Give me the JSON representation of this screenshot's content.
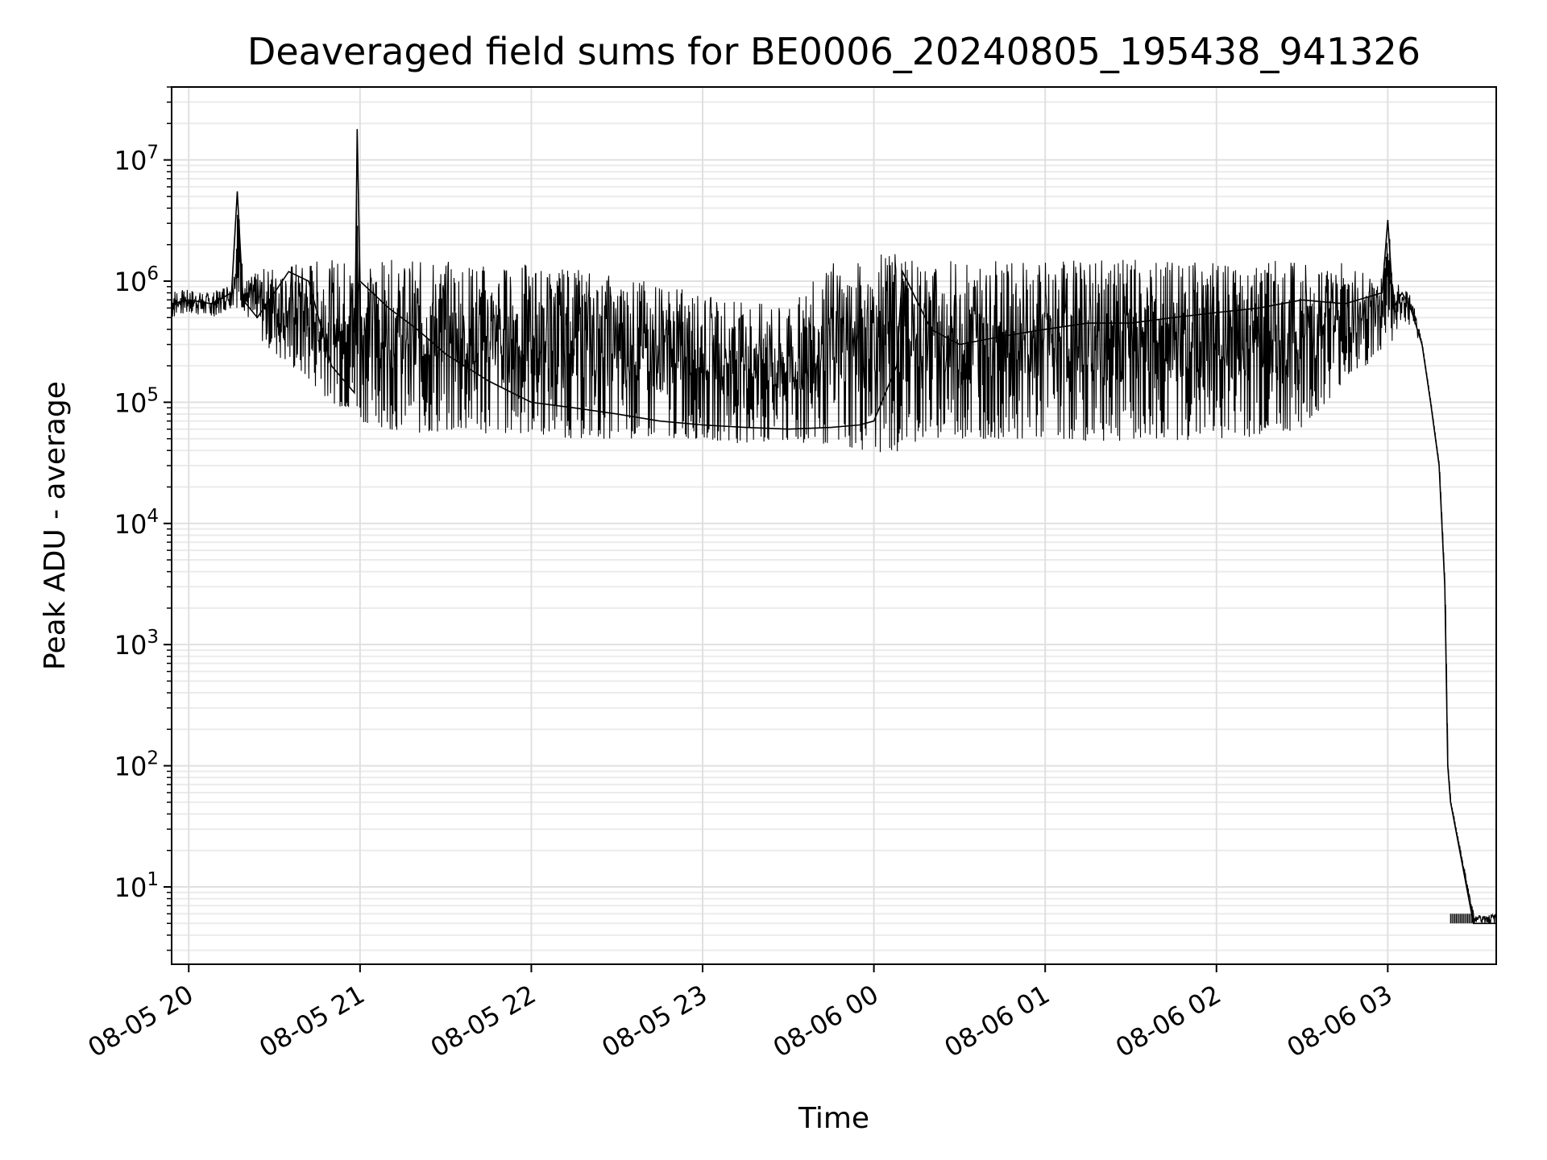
{
  "chart_data": {
    "type": "line",
    "title": "Deaveraged field sums for BE0006_20240805_195438_941326",
    "xlabel": "Time",
    "ylabel": "Peak ADU - average",
    "yscale": "log",
    "ylim": [
      2.3,
      40000000
    ],
    "xlim": [
      "2024-08-05 19:54",
      "2024-08-06 03:38"
    ],
    "grid": true,
    "line_color": "#000000",
    "x_ticks": [
      "08-05 20",
      "08-05 21",
      "08-05 22",
      "08-05 23",
      "08-06 00",
      "08-06 01",
      "08-06 02",
      "08-06 03"
    ],
    "x_tick_times": [
      "2024-08-05 20:00",
      "2024-08-05 21:00",
      "2024-08-05 22:00",
      "2024-08-05 23:00",
      "2024-08-06 00:00",
      "2024-08-06 01:00",
      "2024-08-06 02:00",
      "2024-08-06 03:00"
    ],
    "y_ticks": [
      {
        "value": 10,
        "base": "10",
        "exp": "1"
      },
      {
        "value": 100,
        "base": "10",
        "exp": "2"
      },
      {
        "value": 1000,
        "base": "10",
        "exp": "3"
      },
      {
        "value": 10000,
        "base": "10",
        "exp": "4"
      },
      {
        "value": 100000,
        "base": "10",
        "exp": "5"
      },
      {
        "value": 1000000,
        "base": "10",
        "exp": "6"
      },
      {
        "value": 10000000,
        "base": "10",
        "exp": "7"
      }
    ],
    "series": [
      {
        "x": [
          "2024-08-05 19:54",
          "2024-08-05 20:00",
          "2024-08-05 20:08",
          "2024-08-05 20:15",
          "2024-08-05 20:17",
          "2024-08-05 20:19",
          "2024-08-05 20:24",
          "2024-08-05 20:30",
          "2024-08-05 20:35",
          "2024-08-05 20:42",
          "2024-08-05 20:50",
          "2024-08-05 20:58",
          "2024-08-05 20:59",
          "2024-08-05 21:00",
          "2024-08-05 21:10",
          "2024-08-05 21:20",
          "2024-08-05 21:30",
          "2024-08-05 21:45",
          "2024-08-05 22:00",
          "2024-08-05 22:15",
          "2024-08-05 22:30",
          "2024-08-05 22:45",
          "2024-08-05 23:00",
          "2024-08-05 23:15",
          "2024-08-05 23:30",
          "2024-08-05 23:45",
          "2024-08-05 23:55",
          "2024-08-06 00:00",
          "2024-08-06 00:08",
          "2024-08-06 00:10",
          "2024-08-06 00:20",
          "2024-08-06 00:30",
          "2024-08-06 00:45",
          "2024-08-06 01:00",
          "2024-08-06 01:15",
          "2024-08-06 01:30",
          "2024-08-06 01:45",
          "2024-08-06 02:00",
          "2024-08-06 02:15",
          "2024-08-06 02:30",
          "2024-08-06 02:45",
          "2024-08-06 02:58",
          "2024-08-06 03:00",
          "2024-08-06 03:02",
          "2024-08-06 03:05",
          "2024-08-06 03:08",
          "2024-08-06 03:12",
          "2024-08-06 03:15",
          "2024-08-06 03:18",
          "2024-08-06 03:20",
          "2024-08-06 03:21",
          "2024-08-06 03:22",
          "2024-08-06 03:30",
          "2024-08-06 03:38"
        ],
        "y": [
          650000,
          700000,
          650000,
          800000,
          5500000,
          700000,
          500000,
          800000,
          1200000,
          1000000,
          200000,
          120000,
          18000000,
          1000000,
          600000,
          400000,
          250000,
          150000,
          100000,
          90000,
          80000,
          70000,
          65000,
          62000,
          60000,
          62000,
          65000,
          70000,
          200000,
          1200000,
          400000,
          300000,
          350000,
          400000,
          450000,
          450000,
          500000,
          550000,
          600000,
          700000,
          650000,
          800000,
          3200000,
          600000,
          800000,
          600000,
          300000,
          100000,
          30000,
          3000,
          100,
          50,
          5,
          5
        ],
        "low": [
          500000,
          550000,
          500000,
          600000,
          600000,
          600000,
          350000,
          250000,
          200000,
          150000,
          100000,
          80000,
          80000,
          70000,
          60000,
          55000,
          55000,
          55000,
          55000,
          50000,
          50000,
          50000,
          50000,
          45000,
          45000,
          45000,
          40000,
          40000,
          35000,
          45000,
          50000,
          50000,
          50000,
          50000,
          48000,
          48000,
          48000,
          50000,
          52000,
          60000,
          150000,
          250000,
          400000,
          300000,
          500000,
          400000,
          300000,
          100000,
          30000,
          3000,
          100,
          50,
          5,
          5
        ],
        "high": [
          850000,
          850000,
          800000,
          1000000,
          5500000,
          1000000,
          1200000,
          1400000,
          1400000,
          1500000,
          1500000,
          1600000,
          18000000,
          1500000,
          1500000,
          1500000,
          1500000,
          1400000,
          1400000,
          1300000,
          1200000,
          1000000,
          800000,
          700000,
          600000,
          1500000,
          1500000,
          1500000,
          2100000,
          1500000,
          1500000,
          1500000,
          1500000,
          1500000,
          1500000,
          1500000,
          1500000,
          1500000,
          1500000,
          1500000,
          1400000,
          1200000,
          3200000,
          1000000,
          900000,
          800000,
          300000,
          100000,
          30000,
          3000,
          100,
          50,
          6,
          6
        ]
      }
    ]
  }
}
